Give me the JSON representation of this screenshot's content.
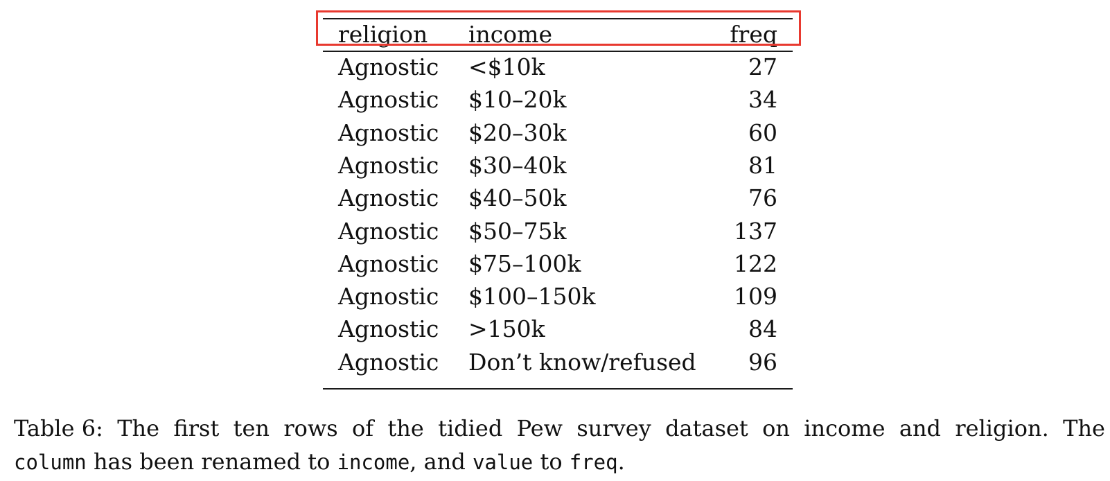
{
  "table": {
    "columns": [
      "religion",
      "income",
      "freq"
    ],
    "rows": [
      [
        "Agnostic",
        "<$10k",
        "27"
      ],
      [
        "Agnostic",
        "$10–20k",
        "34"
      ],
      [
        "Agnostic",
        "$20–30k",
        "60"
      ],
      [
        "Agnostic",
        "$30–40k",
        "81"
      ],
      [
        "Agnostic",
        "$40–50k",
        "76"
      ],
      [
        "Agnostic",
        "$50–75k",
        "137"
      ],
      [
        "Agnostic",
        "$75–100k",
        "122"
      ],
      [
        "Agnostic",
        "$100–150k",
        "109"
      ],
      [
        "Agnostic",
        ">150k",
        "84"
      ],
      [
        "Agnostic",
        "Don’t know/refused",
        "96"
      ]
    ]
  },
  "caption": {
    "label": "Table 6:",
    "line1_words": [
      "The",
      "first",
      "ten",
      "rows",
      "of",
      "the",
      "tidied",
      "Pew",
      "survey",
      "dataset",
      "on",
      "income",
      "and",
      "religion.",
      "The"
    ],
    "code_column": "column",
    "text_renamed": " has been renamed to ",
    "code_income": "income",
    "text_and": ", and ",
    "code_value": "value",
    "text_to": " to ",
    "code_freq": "freq",
    "text_end": "."
  },
  "highlight": {
    "color": "#e8392f",
    "target": "table-header"
  }
}
